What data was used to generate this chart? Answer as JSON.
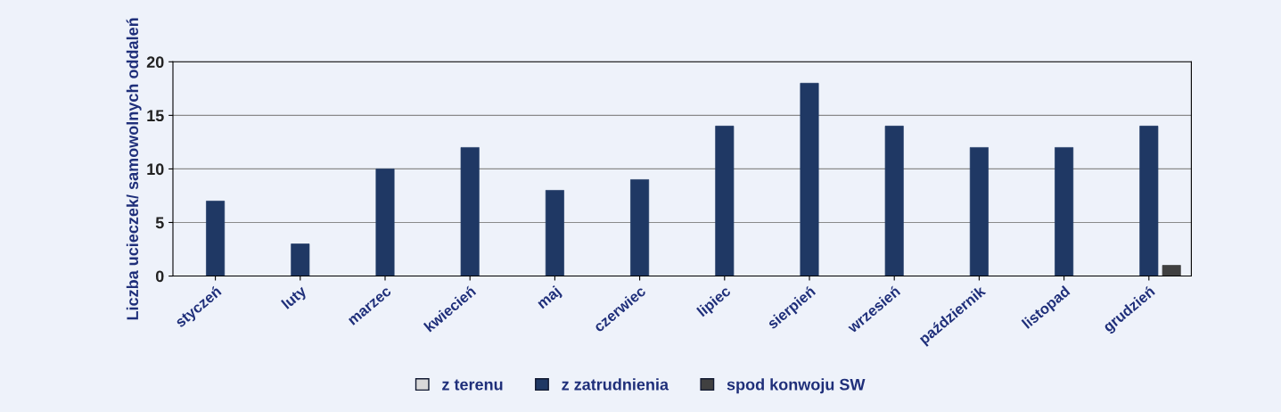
{
  "chart_data": {
    "type": "bar",
    "ylabel": "Liczba ucieczek/ samowolnych oddaleń",
    "categories": [
      "styczeń",
      "luty",
      "marzec",
      "kwiecień",
      "maj",
      "czerwiec",
      "lipiec",
      "sierpień",
      "wrzesień",
      "październik",
      "listopad",
      "grudzień"
    ],
    "series": [
      {
        "name": "z terenu",
        "color": "#d9d9d9",
        "values": [
          0,
          0,
          0,
          0,
          0,
          0,
          0,
          0,
          0,
          0,
          0,
          0
        ]
      },
      {
        "name": "z zatrudnienia",
        "color": "#1f3864",
        "values": [
          7,
          3,
          10,
          12,
          8,
          9,
          14,
          18,
          14,
          12,
          12,
          14
        ]
      },
      {
        "name": "spod konwoju SW",
        "color": "#404040",
        "values": [
          0,
          0,
          0,
          0,
          0,
          0,
          0,
          0,
          0,
          0,
          0,
          1
        ]
      }
    ],
    "ylim": [
      0,
      20
    ],
    "yticks": [
      0,
      5,
      10,
      15,
      20
    ],
    "grid": "y",
    "legend": "bottom"
  }
}
